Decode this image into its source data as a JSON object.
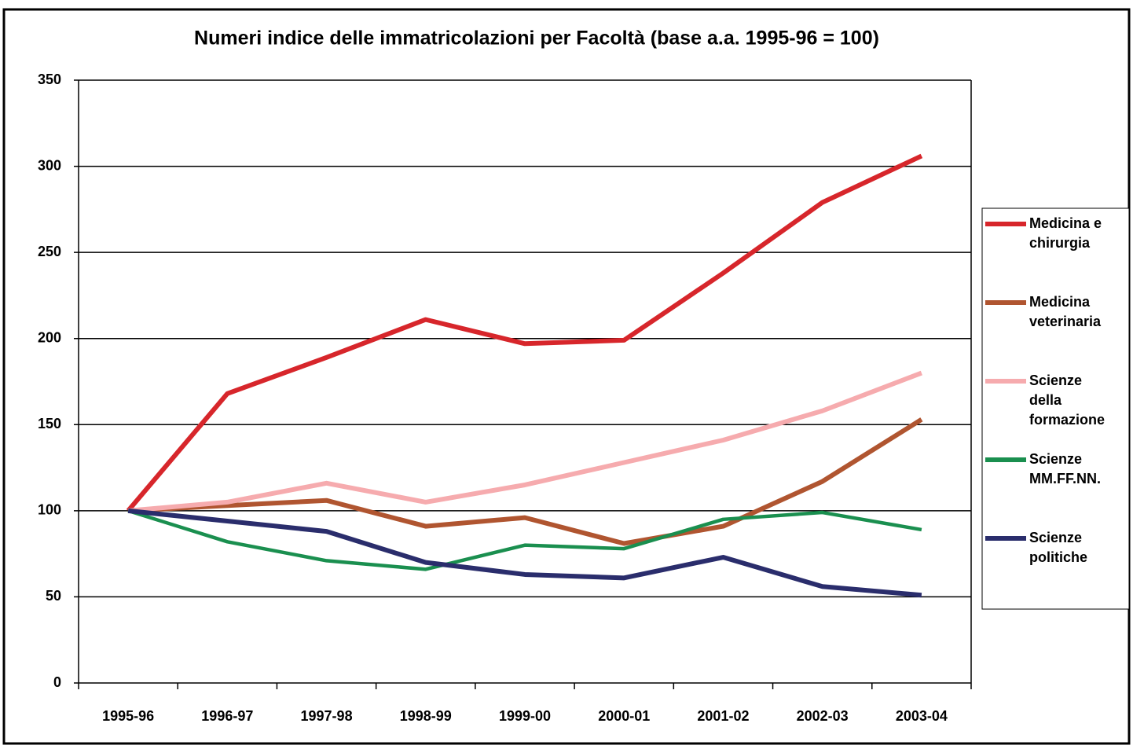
{
  "chart_data": {
    "type": "line",
    "title": "Numeri indice delle immatricolazioni per Facoltà (base a.a. 1995-96  = 100)",
    "categories": [
      "1995-96",
      "1996-97",
      "1997-98",
      "1998-99",
      "1999-00",
      "2000-01",
      "2001-02",
      "2002-03",
      "2003-04"
    ],
    "series": [
      {
        "name": "Medicina e chirurgia",
        "color": "#d7262b",
        "values": [
          100,
          168,
          189,
          211,
          197,
          199,
          238,
          279,
          306
        ]
      },
      {
        "name": "Medicina veterinaria",
        "color": "#b05530",
        "values": [
          100,
          103,
          106,
          91,
          96,
          81,
          91,
          117,
          153
        ]
      },
      {
        "name": "Scienze della formazione",
        "color": "#f6abae",
        "values": [
          100,
          105,
          116,
          105,
          115,
          128,
          141,
          158,
          180
        ]
      },
      {
        "name": "Scienze MM.FF.NN.",
        "color": "#1a8f4f",
        "values": [
          100,
          82,
          71,
          66,
          80,
          78,
          95,
          99,
          89
        ]
      },
      {
        "name": "Scienze politiche",
        "color": "#2a2d6c",
        "values": [
          100,
          94,
          88,
          70,
          63,
          61,
          73,
          56,
          51
        ]
      }
    ],
    "ylim": [
      0,
      350
    ],
    "yticks": [
      0,
      50,
      100,
      150,
      200,
      250,
      300,
      350
    ],
    "grid": true,
    "legend": "right"
  }
}
